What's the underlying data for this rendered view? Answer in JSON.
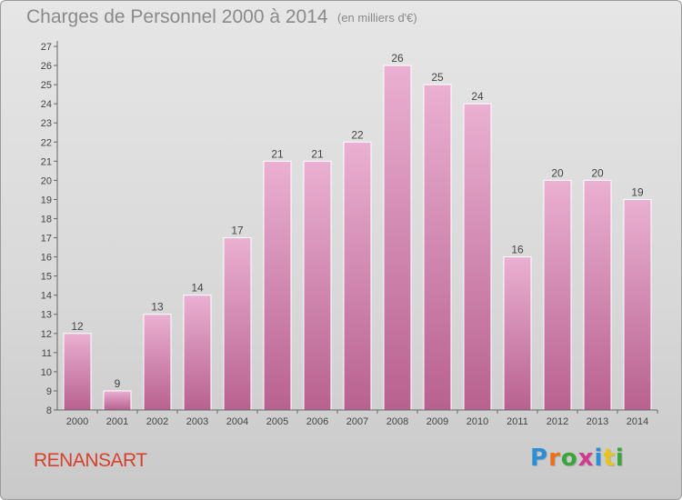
{
  "header": {
    "title": "Charges de Personnel 2000 à 2014",
    "unit": "(en milliers d'€)"
  },
  "footer": {
    "commune": "RENANSART",
    "logo_text": "Proxiti",
    "logo_colors": [
      "#2b8fd6",
      "#e8701e",
      "#3aa53a",
      "#d03b8f",
      "#2b8fd6",
      "#e8c51e",
      "#3aa53a"
    ]
  },
  "colors": {
    "bar_top": "#eab0d2",
    "bar_bottom": "#b8618f",
    "axis": "#666666",
    "label": "#444444"
  },
  "chart_data": {
    "type": "bar",
    "title": "Charges de Personnel 2000 à 2014",
    "categories": [
      "2000",
      "2001",
      "2002",
      "2003",
      "2004",
      "2005",
      "2006",
      "2007",
      "2008",
      "2009",
      "2010",
      "2011",
      "2012",
      "2013",
      "2014"
    ],
    "values": [
      12,
      9,
      13,
      14,
      17,
      21,
      21,
      22,
      26,
      25,
      24,
      16,
      20,
      20,
      19
    ],
    "ylim": [
      8,
      27
    ],
    "yticks": [
      8,
      9,
      10,
      11,
      12,
      13,
      14,
      15,
      16,
      17,
      18,
      19,
      20,
      21,
      22,
      23,
      24,
      25,
      26,
      27
    ],
    "grid": false,
    "xlabel": "",
    "ylabel": ""
  }
}
